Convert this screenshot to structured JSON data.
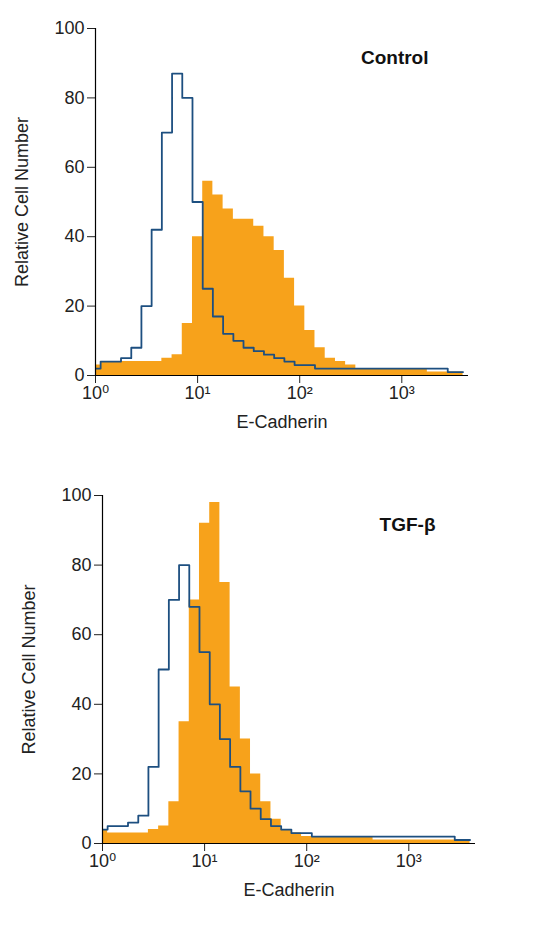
{
  "chart_data": [
    {
      "type": "line",
      "title": "Control",
      "x_label": "E-Cadherin",
      "y_label": "Relative Cell Number",
      "log": "x",
      "x": [
        1,
        1.26,
        1.58,
        2,
        2.51,
        3.16,
        3.98,
        5.01,
        6.31,
        7.94,
        10,
        12.6,
        15.8,
        20,
        25.1,
        31.6,
        39.8,
        50.1,
        63.1,
        79.4,
        100,
        126,
        158,
        200,
        251,
        316,
        398,
        501,
        631,
        794,
        1000,
        1259,
        1585,
        1995,
        2512,
        3162,
        3981
      ],
      "series": [
        {
          "type": "area",
          "color": "#f7a21b",
          "values": [
            3,
            4,
            4,
            4,
            4,
            4,
            4,
            5,
            6,
            15,
            40,
            56,
            52,
            48,
            45,
            45,
            43,
            40,
            36,
            28,
            20,
            13,
            8,
            5,
            4,
            3,
            2,
            2,
            2,
            2,
            2,
            2,
            2,
            1,
            1,
            1,
            1
          ]
        },
        {
          "type": "line",
          "color": "#1d4f80",
          "values": [
            2,
            4,
            4,
            5,
            8,
            20,
            42,
            70,
            87,
            80,
            50,
            25,
            17,
            12,
            10,
            8,
            7,
            6,
            5,
            4,
            3,
            3,
            2,
            2,
            2,
            2,
            2,
            2,
            2,
            2,
            2,
            2,
            2,
            2,
            2,
            1,
            1
          ]
        }
      ],
      "xlim": [
        1,
        4500
      ],
      "xticks": [
        {
          "value": 1,
          "label": "10⁰"
        },
        {
          "value": 10,
          "label": "10¹"
        },
        {
          "value": 100,
          "label": "10²"
        },
        {
          "value": 1000,
          "label": "10³"
        }
      ],
      "ylim": [
        0,
        100
      ],
      "yticks": [
        0,
        20,
        40,
        60,
        80,
        100
      ]
    },
    {
      "type": "line",
      "title": "TGF-β",
      "x_label": "E-Cadherin",
      "y_label": "Relative Cell Number",
      "log": "x",
      "x": [
        1,
        1.26,
        1.58,
        2,
        2.51,
        3.16,
        3.98,
        5.01,
        6.31,
        7.94,
        10,
        12.6,
        15.8,
        20,
        25.1,
        31.6,
        39.8,
        50.1,
        63.1,
        79.4,
        100,
        126,
        158,
        200,
        251,
        316,
        398,
        501,
        631,
        794,
        1000,
        1259,
        1585,
        1995,
        2512,
        3162,
        3981
      ],
      "series": [
        {
          "type": "area",
          "color": "#f7a21b",
          "values": [
            4,
            3,
            3,
            3,
            3,
            4,
            5,
            12,
            35,
            70,
            92,
            98,
            75,
            45,
            30,
            20,
            12,
            7,
            4,
            3,
            2,
            2,
            2,
            2,
            2,
            2,
            2,
            1,
            1,
            1,
            1,
            1,
            1,
            1,
            1,
            1,
            1
          ]
        },
        {
          "type": "line",
          "color": "#1d4f80",
          "values": [
            4,
            5,
            5,
            6,
            8,
            22,
            50,
            70,
            80,
            68,
            55,
            40,
            30,
            22,
            15,
            10,
            7,
            5,
            4,
            3,
            3,
            2,
            2,
            2,
            2,
            2,
            2,
            2,
            2,
            2,
            2,
            2,
            2,
            2,
            2,
            1,
            1
          ]
        }
      ],
      "xlim": [
        1,
        4500
      ],
      "xticks": [
        {
          "value": 1,
          "label": "10⁰"
        },
        {
          "value": 10,
          "label": "10¹"
        },
        {
          "value": 100,
          "label": "10²"
        },
        {
          "value": 1000,
          "label": "10³"
        }
      ],
      "ylim": [
        0,
        100
      ],
      "yticks": [
        0,
        20,
        40,
        60,
        80,
        100
      ]
    }
  ]
}
